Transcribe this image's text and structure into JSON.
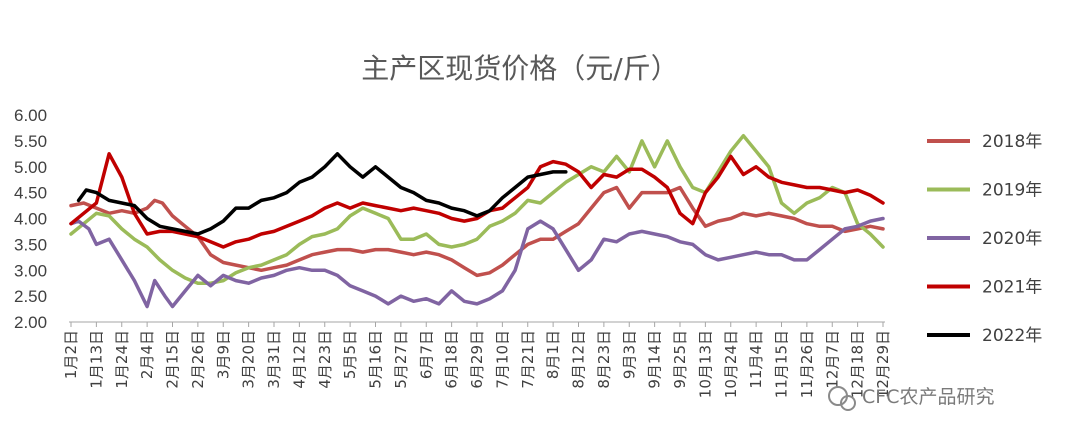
{
  "chart_data": {
    "type": "line",
    "title": "主产区现货价格（元/斤）",
    "ylim": [
      2.0,
      6.0
    ],
    "yticks": [
      "6.00",
      "5.50",
      "5.00",
      "4.50",
      "4.00",
      "3.50",
      "3.00",
      "2.50",
      "2.00"
    ],
    "x_tick_labels": [
      "1月2日",
      "1月13日",
      "1月24日",
      "2月4日",
      "2月15日",
      "2月26日",
      "3月9日",
      "3月20日",
      "3月31日",
      "4月12日",
      "4月23日",
      "5月5日",
      "5月16日",
      "5月27日",
      "6月7日",
      "6月18日",
      "6月29日",
      "7月10日",
      "7月21日",
      "8月1日",
      "8月12日",
      "8月23日",
      "9月3日",
      "9月14日",
      "9月25日",
      "10月13日",
      "10月24日",
      "11月4日",
      "11月15日",
      "11月26日",
      "12月7日",
      "12月18日",
      "12月29日"
    ],
    "x_unit": "tick index (0 = 1月2日, 32 = 12月29日)",
    "grid": false,
    "legend_position": "right",
    "series": [
      {
        "name": "2018年",
        "color": "#c0504d",
        "points": [
          [
            0,
            4.25
          ],
          [
            0.5,
            4.3
          ],
          [
            1,
            4.2
          ],
          [
            1.5,
            4.1
          ],
          [
            2,
            4.15
          ],
          [
            2.5,
            4.1
          ],
          [
            3,
            4.2
          ],
          [
            3.3,
            4.35
          ],
          [
            3.6,
            4.3
          ],
          [
            4,
            4.05
          ],
          [
            4.5,
            3.85
          ],
          [
            5,
            3.65
          ],
          [
            5.5,
            3.3
          ],
          [
            6,
            3.15
          ],
          [
            6.5,
            3.1
          ],
          [
            7,
            3.05
          ],
          [
            7.5,
            3.0
          ],
          [
            8,
            3.05
          ],
          [
            8.5,
            3.1
          ],
          [
            9,
            3.2
          ],
          [
            9.5,
            3.3
          ],
          [
            10,
            3.35
          ],
          [
            10.5,
            3.4
          ],
          [
            11,
            3.4
          ],
          [
            11.5,
            3.35
          ],
          [
            12,
            3.4
          ],
          [
            12.5,
            3.4
          ],
          [
            13,
            3.35
          ],
          [
            13.5,
            3.3
          ],
          [
            14,
            3.35
          ],
          [
            14.5,
            3.3
          ],
          [
            15,
            3.2
          ],
          [
            15.5,
            3.05
          ],
          [
            16,
            2.9
          ],
          [
            16.5,
            2.95
          ],
          [
            17,
            3.1
          ],
          [
            17.5,
            3.3
          ],
          [
            18,
            3.5
          ],
          [
            18.5,
            3.6
          ],
          [
            19,
            3.6
          ],
          [
            19.5,
            3.75
          ],
          [
            20,
            3.9
          ],
          [
            20.5,
            4.2
          ],
          [
            21,
            4.5
          ],
          [
            21.5,
            4.6
          ],
          [
            22,
            4.2
          ],
          [
            22.5,
            4.5
          ],
          [
            23,
            4.5
          ],
          [
            23.5,
            4.5
          ],
          [
            24,
            4.6
          ],
          [
            24.5,
            4.2
          ],
          [
            25,
            3.85
          ],
          [
            25.5,
            3.95
          ],
          [
            26,
            4.0
          ],
          [
            26.5,
            4.1
          ],
          [
            27,
            4.05
          ],
          [
            27.5,
            4.1
          ],
          [
            28,
            4.05
          ],
          [
            28.5,
            4.0
          ],
          [
            29,
            3.9
          ],
          [
            29.5,
            3.85
          ],
          [
            30,
            3.85
          ],
          [
            30.5,
            3.75
          ],
          [
            31,
            3.8
          ],
          [
            31.5,
            3.85
          ],
          [
            32,
            3.8
          ]
        ]
      },
      {
        "name": "2019年",
        "color": "#9bbb59",
        "points": [
          [
            0,
            3.7
          ],
          [
            0.5,
            3.9
          ],
          [
            1,
            4.1
          ],
          [
            1.5,
            4.05
          ],
          [
            2,
            3.8
          ],
          [
            2.5,
            3.6
          ],
          [
            3,
            3.45
          ],
          [
            3.5,
            3.2
          ],
          [
            4,
            3.0
          ],
          [
            4.5,
            2.85
          ],
          [
            5,
            2.75
          ],
          [
            5.5,
            2.75
          ],
          [
            6,
            2.8
          ],
          [
            6.5,
            2.95
          ],
          [
            7,
            3.05
          ],
          [
            7.5,
            3.1
          ],
          [
            8,
            3.2
          ],
          [
            8.5,
            3.3
          ],
          [
            9,
            3.5
          ],
          [
            9.5,
            3.65
          ],
          [
            10,
            3.7
          ],
          [
            10.5,
            3.8
          ],
          [
            11,
            4.05
          ],
          [
            11.5,
            4.2
          ],
          [
            12,
            4.1
          ],
          [
            12.5,
            4.0
          ],
          [
            13,
            3.6
          ],
          [
            13.5,
            3.6
          ],
          [
            14,
            3.7
          ],
          [
            14.5,
            3.5
          ],
          [
            15,
            3.45
          ],
          [
            15.5,
            3.5
          ],
          [
            16,
            3.6
          ],
          [
            16.5,
            3.85
          ],
          [
            17,
            3.95
          ],
          [
            17.5,
            4.1
          ],
          [
            18,
            4.35
          ],
          [
            18.5,
            4.3
          ],
          [
            19,
            4.5
          ],
          [
            19.5,
            4.7
          ],
          [
            20,
            4.85
          ],
          [
            20.5,
            5.0
          ],
          [
            21,
            4.9
          ],
          [
            21.5,
            5.2
          ],
          [
            22,
            4.9
          ],
          [
            22.5,
            5.5
          ],
          [
            23,
            5.0
          ],
          [
            23.5,
            5.5
          ],
          [
            24,
            5.0
          ],
          [
            24.5,
            4.6
          ],
          [
            25,
            4.5
          ],
          [
            25.5,
            4.9
          ],
          [
            26,
            5.3
          ],
          [
            26.5,
            5.6
          ],
          [
            27,
            5.3
          ],
          [
            27.5,
            5.0
          ],
          [
            28,
            4.3
          ],
          [
            28.5,
            4.1
          ],
          [
            29,
            4.3
          ],
          [
            29.5,
            4.4
          ],
          [
            30,
            4.6
          ],
          [
            30.5,
            4.5
          ],
          [
            31,
            3.9
          ],
          [
            31.5,
            3.7
          ],
          [
            32,
            3.45
          ]
        ]
      },
      {
        "name": "2020年",
        "color": "#8064a2",
        "points": [
          [
            0,
            3.9
          ],
          [
            0.3,
            3.95
          ],
          [
            0.7,
            3.8
          ],
          [
            1,
            3.5
          ],
          [
            1.5,
            3.6
          ],
          [
            2,
            3.2
          ],
          [
            2.5,
            2.8
          ],
          [
            3,
            2.3
          ],
          [
            3.3,
            2.8
          ],
          [
            3.7,
            2.5
          ],
          [
            4,
            2.3
          ],
          [
            4.5,
            2.6
          ],
          [
            5,
            2.9
          ],
          [
            5.5,
            2.7
          ],
          [
            6,
            2.9
          ],
          [
            6.5,
            2.8
          ],
          [
            7,
            2.75
          ],
          [
            7.5,
            2.85
          ],
          [
            8,
            2.9
          ],
          [
            8.5,
            3.0
          ],
          [
            9,
            3.05
          ],
          [
            9.5,
            3.0
          ],
          [
            10,
            3.0
          ],
          [
            10.5,
            2.9
          ],
          [
            11,
            2.7
          ],
          [
            11.5,
            2.6
          ],
          [
            12,
            2.5
          ],
          [
            12.5,
            2.35
          ],
          [
            13,
            2.5
          ],
          [
            13.5,
            2.4
          ],
          [
            14,
            2.45
          ],
          [
            14.5,
            2.35
          ],
          [
            15,
            2.6
          ],
          [
            15.5,
            2.4
          ],
          [
            16,
            2.35
          ],
          [
            16.5,
            2.45
          ],
          [
            17,
            2.6
          ],
          [
            17.5,
            3.0
          ],
          [
            18,
            3.8
          ],
          [
            18.5,
            3.95
          ],
          [
            19,
            3.8
          ],
          [
            19.5,
            3.4
          ],
          [
            20,
            3.0
          ],
          [
            20.5,
            3.2
          ],
          [
            21,
            3.6
          ],
          [
            21.5,
            3.55
          ],
          [
            22,
            3.7
          ],
          [
            22.5,
            3.75
          ],
          [
            23,
            3.7
          ],
          [
            23.5,
            3.65
          ],
          [
            24,
            3.55
          ],
          [
            24.5,
            3.5
          ],
          [
            25,
            3.3
          ],
          [
            25.5,
            3.2
          ],
          [
            26,
            3.25
          ],
          [
            26.5,
            3.3
          ],
          [
            27,
            3.35
          ],
          [
            27.5,
            3.3
          ],
          [
            28,
            3.3
          ],
          [
            28.5,
            3.2
          ],
          [
            29,
            3.2
          ],
          [
            29.5,
            3.4
          ],
          [
            30,
            3.6
          ],
          [
            30.5,
            3.8
          ],
          [
            31,
            3.85
          ],
          [
            31.5,
            3.95
          ],
          [
            32,
            4.0
          ]
        ]
      },
      {
        "name": "2021年",
        "color": "#c00000",
        "points": [
          [
            0,
            3.9
          ],
          [
            0.5,
            4.1
          ],
          [
            1,
            4.3
          ],
          [
            1.5,
            5.25
          ],
          [
            2,
            4.8
          ],
          [
            2.5,
            4.1
          ],
          [
            3,
            3.7
          ],
          [
            3.5,
            3.75
          ],
          [
            4,
            3.75
          ],
          [
            4.5,
            3.7
          ],
          [
            5,
            3.65
          ],
          [
            5.5,
            3.55
          ],
          [
            6,
            3.45
          ],
          [
            6.5,
            3.55
          ],
          [
            7,
            3.6
          ],
          [
            7.5,
            3.7
          ],
          [
            8,
            3.75
          ],
          [
            8.5,
            3.85
          ],
          [
            9,
            3.95
          ],
          [
            9.5,
            4.05
          ],
          [
            10,
            4.2
          ],
          [
            10.5,
            4.3
          ],
          [
            11,
            4.2
          ],
          [
            11.5,
            4.3
          ],
          [
            12,
            4.25
          ],
          [
            12.5,
            4.2
          ],
          [
            13,
            4.15
          ],
          [
            13.5,
            4.2
          ],
          [
            14,
            4.15
          ],
          [
            14.5,
            4.1
          ],
          [
            15,
            4.0
          ],
          [
            15.5,
            3.95
          ],
          [
            16,
            4.0
          ],
          [
            16.5,
            4.15
          ],
          [
            17,
            4.2
          ],
          [
            17.5,
            4.4
          ],
          [
            18,
            4.6
          ],
          [
            18.5,
            5.0
          ],
          [
            19,
            5.1
          ],
          [
            19.5,
            5.05
          ],
          [
            20,
            4.9
          ],
          [
            20.5,
            4.6
          ],
          [
            21,
            4.85
          ],
          [
            21.5,
            4.8
          ],
          [
            22,
            4.95
          ],
          [
            22.5,
            4.95
          ],
          [
            23,
            4.8
          ],
          [
            23.5,
            4.6
          ],
          [
            24,
            4.1
          ],
          [
            24.5,
            3.9
          ],
          [
            25,
            4.5
          ],
          [
            25.5,
            4.8
          ],
          [
            26,
            5.2
          ],
          [
            26.5,
            4.85
          ],
          [
            27,
            5.0
          ],
          [
            27.5,
            4.8
          ],
          [
            28,
            4.7
          ],
          [
            28.5,
            4.65
          ],
          [
            29,
            4.6
          ],
          [
            29.5,
            4.6
          ],
          [
            30,
            4.55
          ],
          [
            30.5,
            4.5
          ],
          [
            31,
            4.55
          ],
          [
            31.5,
            4.45
          ],
          [
            32,
            4.3
          ]
        ]
      },
      {
        "name": "2022年",
        "color": "#000000",
        "points": [
          [
            0.3,
            4.35
          ],
          [
            0.6,
            4.55
          ],
          [
            1,
            4.5
          ],
          [
            1.5,
            4.35
          ],
          [
            2,
            4.3
          ],
          [
            2.5,
            4.25
          ],
          [
            3,
            4.0
          ],
          [
            3.5,
            3.85
          ],
          [
            4,
            3.8
          ],
          [
            4.5,
            3.75
          ],
          [
            5,
            3.7
          ],
          [
            5.5,
            3.8
          ],
          [
            6,
            3.95
          ],
          [
            6.5,
            4.2
          ],
          [
            7,
            4.2
          ],
          [
            7.5,
            4.35
          ],
          [
            8,
            4.4
          ],
          [
            8.5,
            4.5
          ],
          [
            9,
            4.7
          ],
          [
            9.5,
            4.8
          ],
          [
            10,
            5.0
          ],
          [
            10.5,
            5.25
          ],
          [
            11,
            5.0
          ],
          [
            11.5,
            4.8
          ],
          [
            12,
            5.0
          ],
          [
            12.5,
            4.8
          ],
          [
            13,
            4.6
          ],
          [
            13.5,
            4.5
          ],
          [
            14,
            4.35
          ],
          [
            14.5,
            4.3
          ],
          [
            15,
            4.2
          ],
          [
            15.5,
            4.15
          ],
          [
            16,
            4.05
          ],
          [
            16.5,
            4.15
          ],
          [
            17,
            4.4
          ],
          [
            17.5,
            4.6
          ],
          [
            18,
            4.8
          ],
          [
            18.5,
            4.85
          ],
          [
            19,
            4.9
          ],
          [
            19.5,
            4.9
          ]
        ]
      }
    ]
  },
  "watermark": "CFC农产品研究"
}
